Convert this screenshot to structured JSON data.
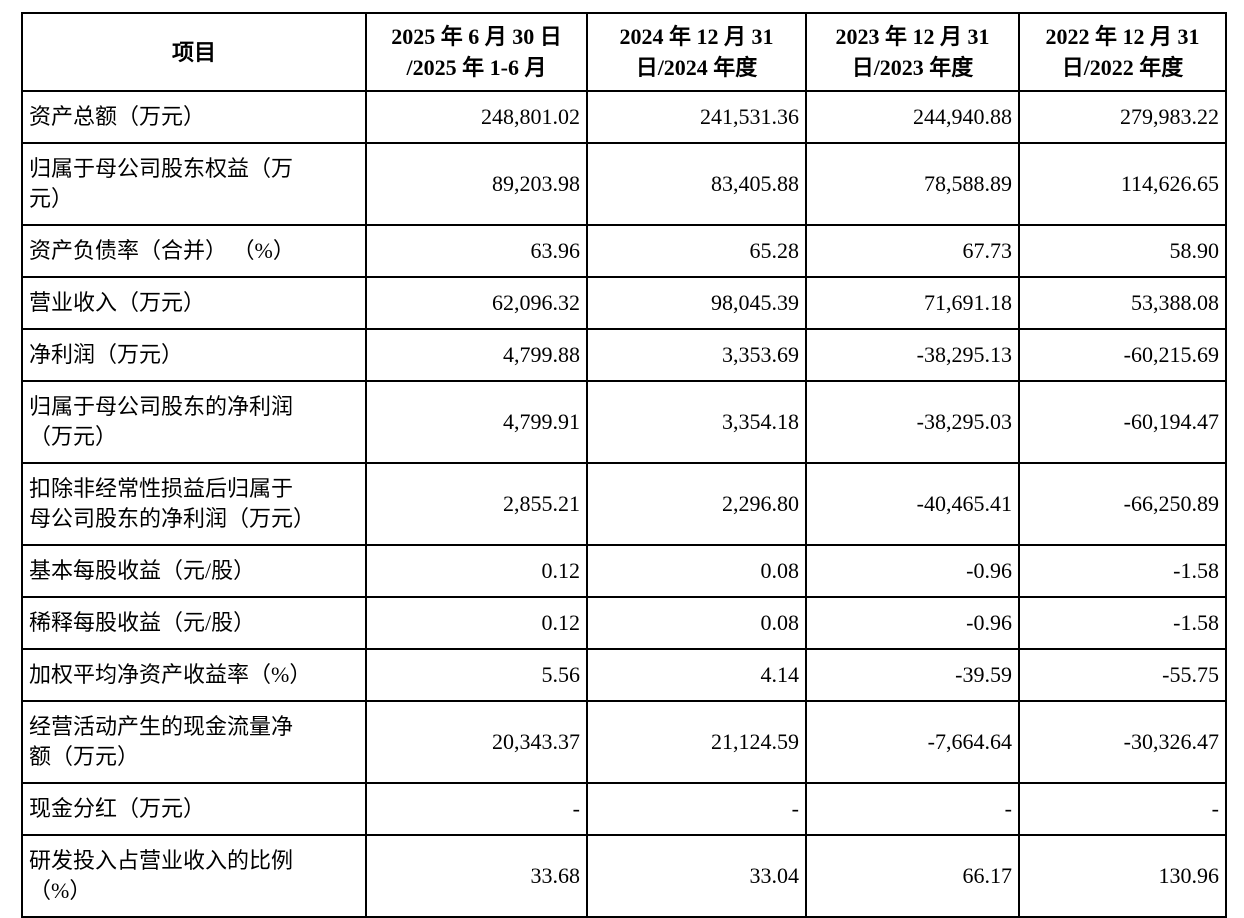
{
  "table": {
    "columns": [
      "项目",
      "2025 年 6 月 30 日\n/2025 年 1-6 月",
      "2024 年 12 月 31\n日/2024 年度",
      "2023 年 12 月 31\n日/2023 年度",
      "2022 年 12 月 31\n日/2022 年度"
    ],
    "rows": [
      {
        "label": "资产总额（万元）",
        "values": [
          "248,801.02",
          "241,531.36",
          "244,940.88",
          "279,983.22"
        ]
      },
      {
        "label": "归属于母公司股东权益（万\n元）",
        "values": [
          "89,203.98",
          "83,405.88",
          "78,588.89",
          "114,626.65"
        ]
      },
      {
        "label": "资产负债率（合并） （%）",
        "values": [
          "63.96",
          "65.28",
          "67.73",
          "58.90"
        ]
      },
      {
        "label": "营业收入（万元）",
        "values": [
          "62,096.32",
          "98,045.39",
          "71,691.18",
          "53,388.08"
        ]
      },
      {
        "label": "净利润（万元）",
        "values": [
          "4,799.88",
          "3,353.69",
          "-38,295.13",
          "-60,215.69"
        ]
      },
      {
        "label": "归属于母公司股东的净利润\n（万元）",
        "values": [
          "4,799.91",
          "3,354.18",
          "-38,295.03",
          "-60,194.47"
        ]
      },
      {
        "label": "扣除非经常性损益后归属于\n母公司股东的净利润（万元）",
        "values": [
          "2,855.21",
          "2,296.80",
          "-40,465.41",
          "-66,250.89"
        ]
      },
      {
        "label": "基本每股收益（元/股）",
        "values": [
          "0.12",
          "0.08",
          "-0.96",
          "-1.58"
        ]
      },
      {
        "label": "稀释每股收益（元/股）",
        "values": [
          "0.12",
          "0.08",
          "-0.96",
          "-1.58"
        ]
      },
      {
        "label": "加权平均净资产收益率（%）",
        "values": [
          "5.56",
          "4.14",
          "-39.59",
          "-55.75"
        ]
      },
      {
        "label": "经营活动产生的现金流量净\n额（万元）",
        "values": [
          "20,343.37",
          "21,124.59",
          "-7,664.64",
          "-30,326.47"
        ]
      },
      {
        "label": "现金分红（万元）",
        "values": [
          "-",
          "-",
          "-",
          "-"
        ]
      },
      {
        "label": "研发投入占营业收入的比例\n（%）",
        "values": [
          "33.68",
          "33.04",
          "66.17",
          "130.96"
        ]
      }
    ]
  }
}
